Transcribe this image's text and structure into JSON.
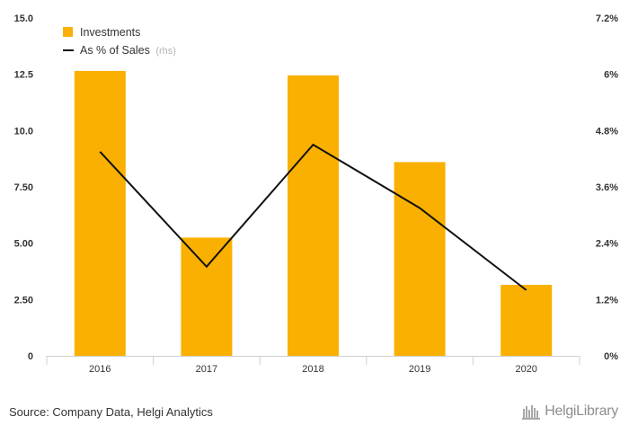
{
  "chart_data": {
    "type": "bar",
    "categories": [
      "2016",
      "2017",
      "2018",
      "2019",
      "2020"
    ],
    "series": [
      {
        "name": "Investments",
        "type": "bar",
        "axis": "left",
        "color": "#F9B000",
        "values": [
          12.65,
          5.25,
          12.45,
          8.6,
          3.15
        ]
      },
      {
        "name": "As % of Sales",
        "note": "(rhs)",
        "type": "line",
        "axis": "right",
        "color": "#111111",
        "values": [
          4.35,
          1.9,
          4.5,
          3.15,
          1.4
        ]
      }
    ],
    "y_left": {
      "min": 0,
      "max": 15,
      "ticks": [
        "0",
        "2.50",
        "5.00",
        "7.50",
        "10.0",
        "12.5",
        "15.0"
      ]
    },
    "y_right": {
      "min": 0,
      "max": 7.2,
      "ticks": [
        "0%",
        "1.2%",
        "2.4%",
        "3.6%",
        "4.8%",
        "6%",
        "7.2%"
      ]
    },
    "legend_position": "top-left",
    "grid": false
  },
  "footer": {
    "source": "Source: Company Data, Helgi Analytics",
    "logo_text": "HelgiLibrary"
  }
}
